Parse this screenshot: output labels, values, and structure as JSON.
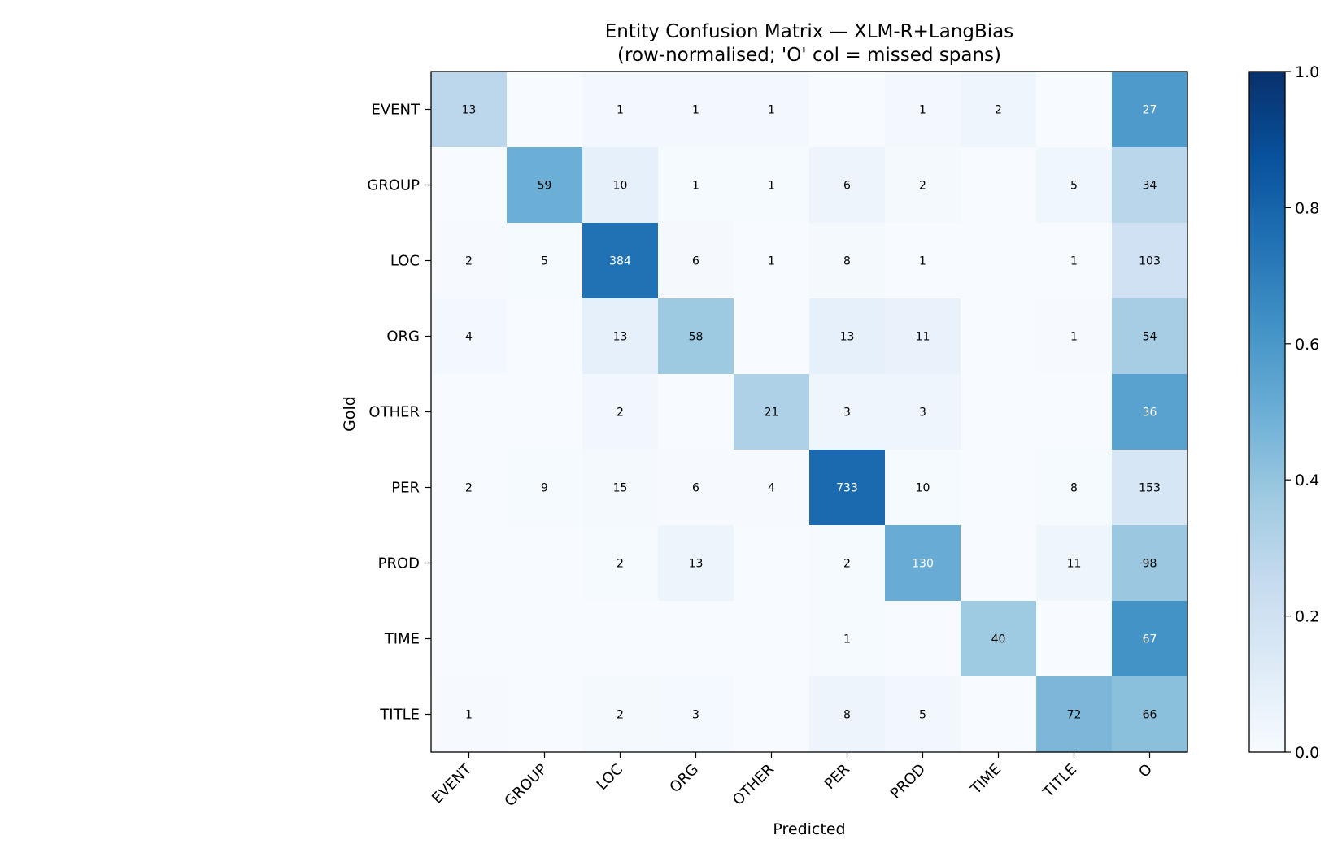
{
  "chart_data": {
    "type": "heatmap",
    "title": "Entity Confusion Matrix — XLM-R+LangBias",
    "subtitle": "(row-normalised; 'O' col = missed spans)",
    "xlabel": "Predicted",
    "ylabel": "Gold",
    "x_categories": [
      "EVENT",
      "GROUP",
      "LOC",
      "ORG",
      "OTHER",
      "PER",
      "PROD",
      "TIME",
      "TITLE",
      "O"
    ],
    "y_categories": [
      "EVENT",
      "GROUP",
      "LOC",
      "ORG",
      "OTHER",
      "PER",
      "PROD",
      "TIME",
      "TITLE"
    ],
    "values": [
      [
        13,
        0,
        1,
        1,
        1,
        0,
        1,
        2,
        0,
        27
      ],
      [
        0,
        59,
        10,
        1,
        1,
        6,
        2,
        0,
        5,
        34
      ],
      [
        2,
        5,
        384,
        6,
        1,
        8,
        1,
        0,
        1,
        103
      ],
      [
        4,
        0,
        13,
        58,
        0,
        13,
        11,
        0,
        1,
        54
      ],
      [
        0,
        0,
        2,
        0,
        21,
        3,
        3,
        0,
        0,
        36
      ],
      [
        2,
        9,
        15,
        6,
        4,
        733,
        10,
        0,
        8,
        153
      ],
      [
        0,
        0,
        2,
        13,
        0,
        2,
        130,
        0,
        11,
        98
      ],
      [
        0,
        0,
        0,
        0,
        0,
        1,
        0,
        40,
        0,
        67
      ],
      [
        1,
        0,
        2,
        3,
        0,
        8,
        5,
        0,
        72,
        66
      ]
    ],
    "normalization": "row",
    "colormap": "Blues",
    "color_range": [
      0,
      1
    ],
    "colorbar_ticks": [
      "0.0",
      "0.2",
      "0.4",
      "0.6",
      "0.8",
      "1.0"
    ],
    "hide_zero_labels": true,
    "grid": false
  }
}
